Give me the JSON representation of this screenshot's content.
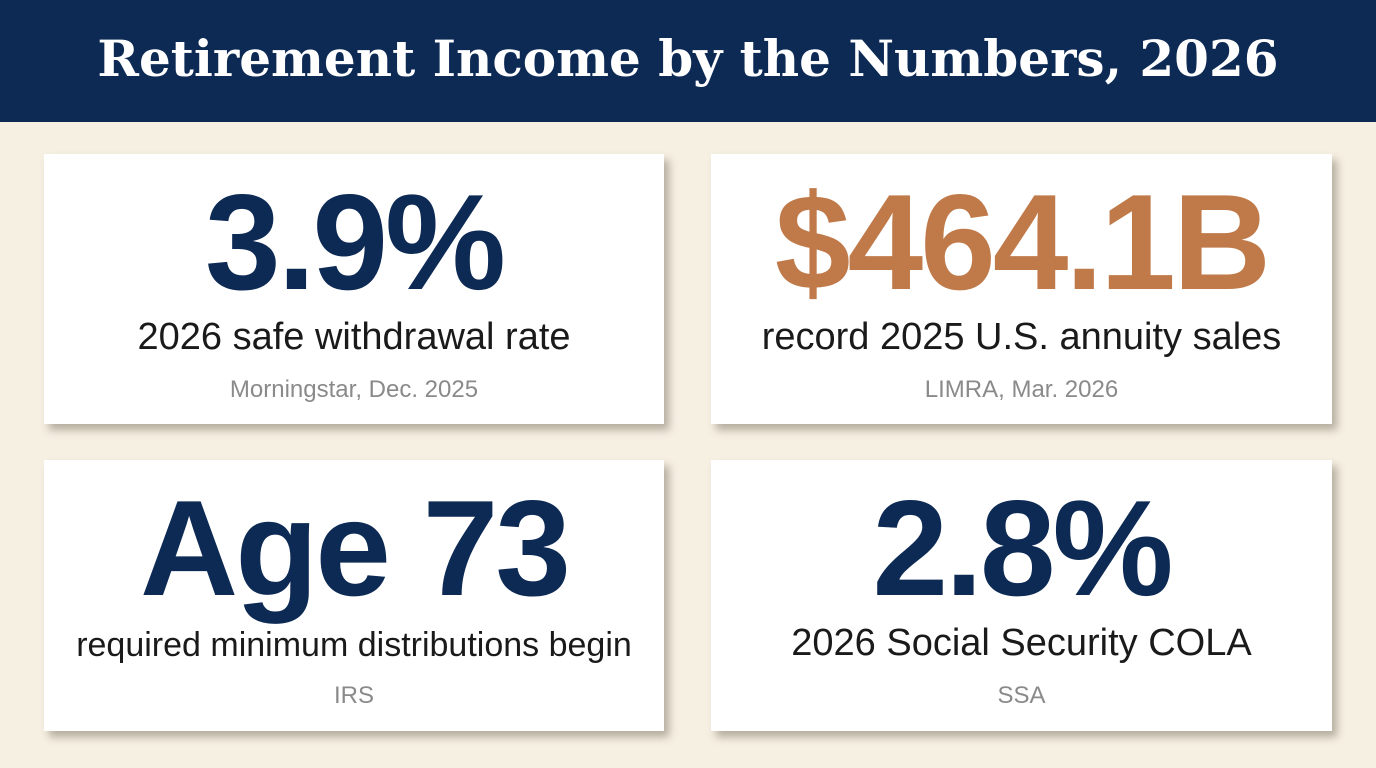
{
  "header": {
    "title": "Retirement Income by the Numbers, 2026"
  },
  "colors": {
    "header_bg": "#0d2a55",
    "page_bg": "#f6f0e3",
    "value_primary": "#0d2a55",
    "value_accent": "#c07a4a",
    "label_text": "#1a1a1a",
    "source_text": "#8a8a8a"
  },
  "stats": [
    {
      "value": "3.9%",
      "label": "2026 safe withdrawal rate",
      "source": "Morningstar, Dec. 2025"
    },
    {
      "value": "$464.1B",
      "label": "record 2025 U.S. annuity sales",
      "source": "LIMRA, Mar. 2026"
    },
    {
      "value": "Age 73",
      "label": "required minimum distributions begin",
      "source": "IRS"
    },
    {
      "value": "2.8%",
      "label": "2026 Social Security COLA",
      "source": "SSA"
    }
  ]
}
